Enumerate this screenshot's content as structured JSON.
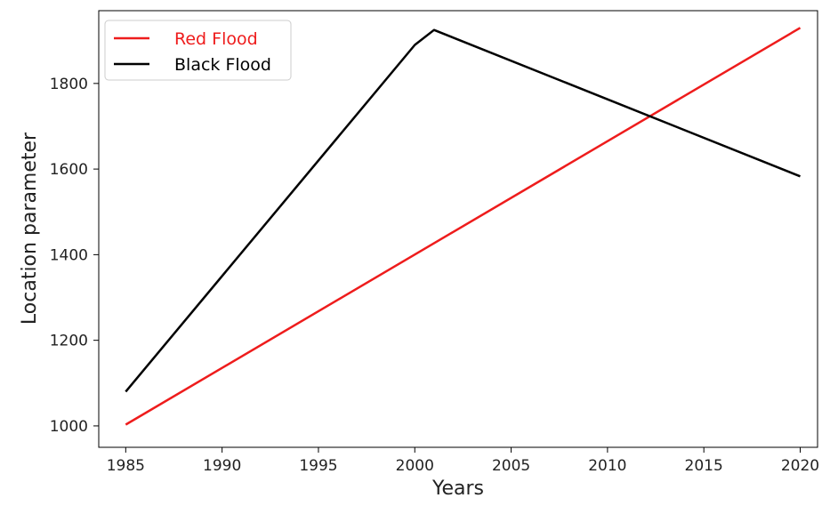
{
  "chart_data": {
    "type": "line",
    "title": "",
    "xlabel": "Years",
    "ylabel": "Location parameter",
    "xlim": [
      1983.6,
      2020.9
    ],
    "ylim": [
      950,
      1970
    ],
    "xticks": [
      1985,
      1990,
      1995,
      2000,
      2005,
      2010,
      2015,
      2020
    ],
    "yticks": [
      1000,
      1200,
      1400,
      1600,
      1800
    ],
    "grid": false,
    "legend_position": "top-left",
    "series": [
      {
        "name": "Red Flood",
        "color": "#ee1c1c",
        "label_color": "#ee1c1c",
        "x": [
          1985,
          2020
        ],
        "y": [
          1003,
          1930
        ]
      },
      {
        "name": "Black Flood",
        "color": "#000000",
        "label_color": "#000000",
        "x": [
          1985,
          2000,
          2001,
          2020
        ],
        "y": [
          1080,
          1890,
          1925,
          1583
        ]
      }
    ]
  }
}
